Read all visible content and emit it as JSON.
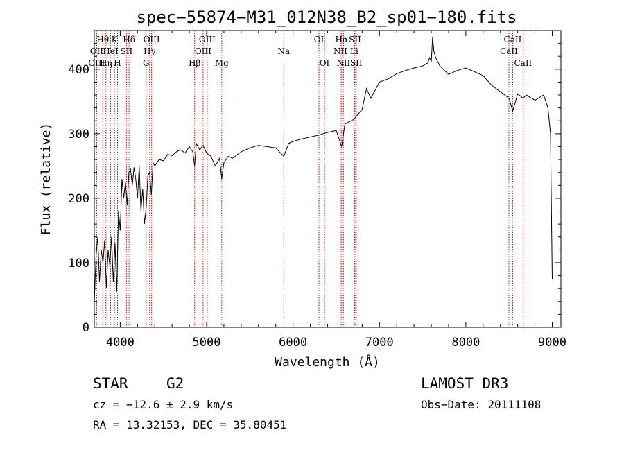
{
  "chart_data": {
    "type": "line",
    "title": "spec−55874−M31_012N38_B2_sp01−180.fits",
    "xlabel": "Wavelength (Å)",
    "ylabel": "Flux (relative)",
    "xlim": [
      3700,
      9100
    ],
    "ylim": [
      0,
      460
    ],
    "xticks": [
      4000,
      5000,
      6000,
      7000,
      8000,
      9000
    ],
    "yticks": [
      0,
      100,
      200,
      300,
      400
    ],
    "grid": false,
    "series": [
      {
        "name": "spectrum",
        "x": [
          3700,
          3720,
          3740,
          3760,
          3780,
          3800,
          3820,
          3840,
          3860,
          3880,
          3900,
          3920,
          3940,
          3960,
          3980,
          4000,
          4020,
          4040,
          4060,
          4080,
          4100,
          4120,
          4140,
          4160,
          4180,
          4200,
          4220,
          4240,
          4260,
          4280,
          4300,
          4320,
          4340,
          4360,
          4380,
          4400,
          4450,
          4500,
          4550,
          4600,
          4650,
          4700,
          4750,
          4800,
          4840,
          4861,
          4880,
          4920,
          4960,
          5000,
          5050,
          5100,
          5150,
          5175,
          5200,
          5250,
          5300,
          5400,
          5500,
          5600,
          5700,
          5800,
          5893,
          5950,
          6000,
          6100,
          6200,
          6300,
          6400,
          6500,
          6563,
          6600,
          6700,
          6800,
          6850,
          6900,
          7000,
          7100,
          7200,
          7300,
          7400,
          7500,
          7560,
          7580,
          7600,
          7615,
          7630,
          7650,
          7700,
          7800,
          7900,
          8000,
          8100,
          8200,
          8300,
          8400,
          8500,
          8542,
          8600,
          8662,
          8700,
          8800,
          8900,
          8950,
          8980,
          9000
        ],
        "values": [
          40,
          110,
          140,
          70,
          120,
          100,
          135,
          60,
          120,
          95,
          140,
          70,
          130,
          55,
          180,
          150,
          230,
          200,
          225,
          190,
          240,
          245,
          220,
          248,
          230,
          200,
          250,
          180,
          215,
          160,
          185,
          235,
          240,
          205,
          255,
          250,
          260,
          258,
          268,
          266,
          272,
          275,
          270,
          280,
          272,
          250,
          285,
          275,
          282,
          270,
          265,
          250,
          262,
          230,
          255,
          265,
          262,
          272,
          278,
          282,
          280,
          278,
          265,
          285,
          288,
          292,
          295,
          298,
          302,
          305,
          280,
          315,
          322,
          338,
          370,
          355,
          380,
          385,
          393,
          398,
          402,
          405,
          410,
          418,
          412,
          450,
          428,
          418,
          405,
          392,
          398,
          402,
          396,
          390,
          375,
          365,
          355,
          335,
          362,
          355,
          360,
          352,
          360,
          340,
          300,
          75
        ]
      }
    ],
    "spectral_lines": [
      {
        "label": "Hθ",
        "x": 3798,
        "row": 0
      },
      {
        "label": "OII",
        "x": 3727,
        "row": 1
      },
      {
        "label": "OIII",
        "x": 3727,
        "row": 2
      },
      {
        "label": "Hη",
        "x": 3835,
        "row": 2
      },
      {
        "label": "HeI",
        "x": 3889,
        "row": 1
      },
      {
        "label": "K",
        "x": 3934,
        "row": 0
      },
      {
        "label": "H",
        "x": 3969,
        "row": 2
      },
      {
        "label": "SII",
        "x": 4072,
        "row": 1
      },
      {
        "label": "Hδ",
        "x": 4102,
        "row": 0
      },
      {
        "label": "G",
        "x": 4300,
        "row": 2
      },
      {
        "label": "OIII",
        "x": 4363,
        "row": 0
      },
      {
        "label": "Hγ",
        "x": 4340,
        "row": 1
      },
      {
        "label": "Hβ",
        "x": 4861,
        "row": 2
      },
      {
        "label": "OIII",
        "x": 4959,
        "row": 1
      },
      {
        "label": "OIII",
        "x": 5007,
        "row": 0
      },
      {
        "label": "Mg",
        "x": 5175,
        "row": 2
      },
      {
        "label": "Na",
        "x": 5893,
        "row": 1
      },
      {
        "label": "OI",
        "x": 6300,
        "row": 0
      },
      {
        "label": "OI",
        "x": 6364,
        "row": 2
      },
      {
        "label": "NII",
        "x": 6548,
        "row": 1
      },
      {
        "label": "Hα",
        "x": 6563,
        "row": 0
      },
      {
        "label": "NII",
        "x": 6583,
        "row": 2
      },
      {
        "label": "Li",
        "x": 6708,
        "row": 1
      },
      {
        "label": "SII",
        "x": 6717,
        "row": 0
      },
      {
        "label": "SII",
        "x": 6731,
        "row": 2
      },
      {
        "label": "CaII",
        "x": 8498,
        "row": 1
      },
      {
        "label": "CaII",
        "x": 8542,
        "row": 0
      },
      {
        "label": "CaII",
        "x": 8662,
        "row": 2
      }
    ]
  },
  "info": {
    "class": "STAR",
    "subclass": "G2",
    "survey": "LAMOST DR3",
    "cz": "cz = −12.6 ± 2.9 km/s",
    "obs_date": "Obs−Date: 20111108",
    "coords": "RA =  13.32153, DEC =  35.80451"
  },
  "colors": {
    "spectrum": "#000000",
    "line_marker": "#cc0000",
    "axis": "#000000"
  }
}
